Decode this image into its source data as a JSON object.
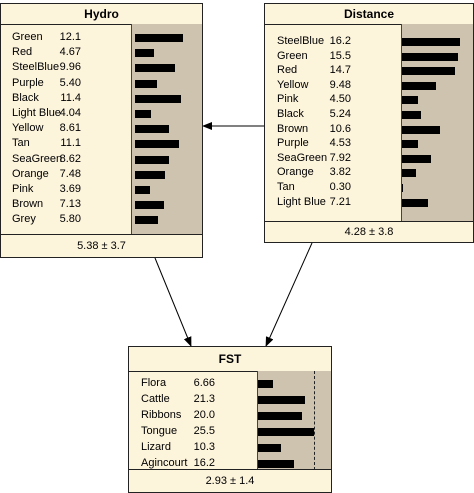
{
  "nodes": {
    "hydro": {
      "title": "Hydro",
      "footer": "5.38 ± 3.7",
      "states": [
        {
          "label": "Green",
          "value": "12.1",
          "pct": 12.1
        },
        {
          "label": "Red",
          "value": "4.67",
          "pct": 4.67
        },
        {
          "label": "SteelBlue",
          "value": "9.96",
          "pct": 9.96
        },
        {
          "label": "Purple",
          "value": "5.40",
          "pct": 5.4
        },
        {
          "label": "Black",
          "value": "11.4",
          "pct": 11.4
        },
        {
          "label": "Light Blue",
          "value": "4.04",
          "pct": 4.04
        },
        {
          "label": "Yellow",
          "value": "8.61",
          "pct": 8.61
        },
        {
          "label": "Tan",
          "value": "11.1",
          "pct": 11.1
        },
        {
          "label": "SeaGreen",
          "value": "8.62",
          "pct": 8.62
        },
        {
          "label": "Orange",
          "value": "7.48",
          "pct": 7.48
        },
        {
          "label": "Pink",
          "value": "3.69",
          "pct": 3.69
        },
        {
          "label": "Brown",
          "value": "7.13",
          "pct": 7.13
        },
        {
          "label": "Grey",
          "value": "5.80",
          "pct": 5.8
        }
      ]
    },
    "distance": {
      "title": "Distance",
      "footer": "4.28 ± 3.8",
      "states": [
        {
          "label": "SteelBlue",
          "value": "16.2",
          "pct": 16.2
        },
        {
          "label": "Green",
          "value": "15.5",
          "pct": 15.5
        },
        {
          "label": "Red",
          "value": "14.7",
          "pct": 14.7
        },
        {
          "label": "Yellow",
          "value": "9.48",
          "pct": 9.48
        },
        {
          "label": "Pink",
          "value": "4.50",
          "pct": 4.5
        },
        {
          "label": "Black",
          "value": "5.24",
          "pct": 5.24
        },
        {
          "label": "Brown",
          "value": "10.6",
          "pct": 10.6
        },
        {
          "label": "Purple",
          "value": "4.53",
          "pct": 4.53
        },
        {
          "label": "SeaGreen",
          "value": "7.92",
          "pct": 7.92
        },
        {
          "label": "Orange",
          "value": "3.82",
          "pct": 3.82
        },
        {
          "label": "Tan",
          "value": "0.30",
          "pct": 0.3
        },
        {
          "label": "Light Blue",
          "value": "7.21",
          "pct": 7.21
        }
      ]
    },
    "fst": {
      "title": "FST",
      "footer": "2.93 ± 1.4",
      "states": [
        {
          "label": "Flora",
          "value": "6.66",
          "pct": 6.66
        },
        {
          "label": "Cattle",
          "value": "21.3",
          "pct": 21.3
        },
        {
          "label": "Ribbons",
          "value": "20.0",
          "pct": 20.0
        },
        {
          "label": "Tongue",
          "value": "25.5",
          "pct": 25.5
        },
        {
          "label": "Lizard",
          "value": "10.3",
          "pct": 10.3
        },
        {
          "label": "Agincourt",
          "value": "16.2",
          "pct": 16.2
        }
      ]
    }
  },
  "edges": [
    {
      "from": "distance",
      "to": "hydro"
    },
    {
      "from": "hydro",
      "to": "fst"
    },
    {
      "from": "distance",
      "to": "fst"
    }
  ],
  "colors": {
    "node_bg": "#fdf4dc",
    "panel_bg": "#cdc3ae",
    "bar": "#000000"
  }
}
